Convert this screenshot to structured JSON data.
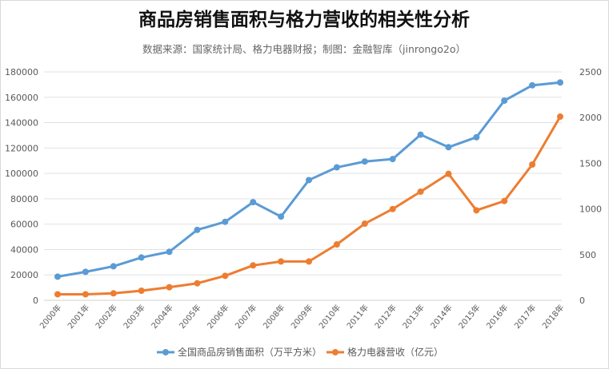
{
  "chart_data": {
    "type": "line",
    "title": "商品房销售面积与格力营收的相关性分析",
    "subtitle": "数据来源：国家统计局、格力电器财报；制图：金融智库（jinrongo2o）",
    "categories": [
      "2000年",
      "2001年",
      "2002年",
      "2003年",
      "2004年",
      "2005年",
      "2006年",
      "2007年",
      "2008年",
      "2009年",
      "2010年",
      "2011年",
      "2012年",
      "2013年",
      "2014年",
      "2015年",
      "2016年",
      "2017年",
      "2018年"
    ],
    "y_left": {
      "ylim": [
        0,
        180000
      ],
      "ticks": [
        "0",
        "20000",
        "40000",
        "60000",
        "80000",
        "100000",
        "120000",
        "140000",
        "160000",
        "180000"
      ]
    },
    "y_right": {
      "ylim": [
        0,
        2500
      ],
      "ticks": [
        "0",
        "500",
        "1000",
        "1500",
        "2000",
        "2500"
      ]
    },
    "grid": true,
    "legend_position": "bottom",
    "series": [
      {
        "name": "全国商品房销售面积（万平方米）",
        "axis": "left",
        "color": "#5b9bd5",
        "values": [
          18637,
          22412,
          26808,
          33718,
          38232,
          55486,
          61857,
          77355,
          65970,
          94755,
          104765,
          109367,
          111304,
          130551,
          120649,
          128495,
          157349,
          169408,
          171654
        ]
      },
      {
        "name": "格力电器营收（亿元）",
        "axis": "right",
        "color": "#ed7d31",
        "values": [
          66,
          66,
          76,
          105,
          143,
          186,
          268,
          382,
          425,
          425,
          612,
          839,
          999,
          1189,
          1384,
          985,
          1087,
          1486,
          2010
        ]
      }
    ]
  }
}
